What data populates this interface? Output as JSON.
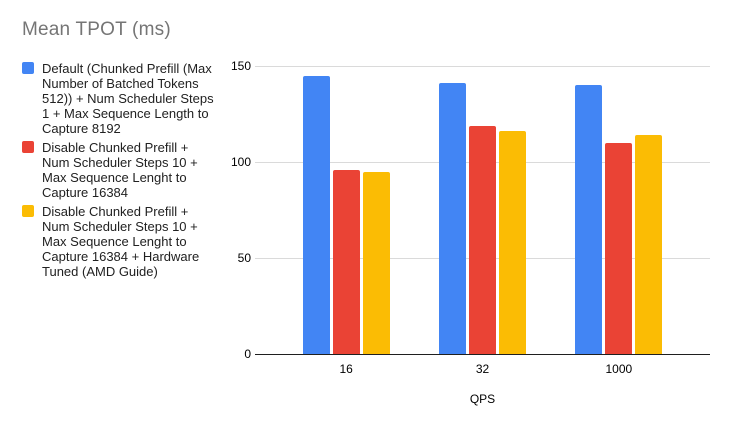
{
  "title": "Mean TPOT (ms)",
  "colors": {
    "series_blue": "#4285F4",
    "series_red": "#EA4335",
    "series_yellow": "#FBBC04",
    "gridline": "#dadada",
    "axis_line": "#1f1f1f",
    "title_text": "#757575",
    "legend_text": "#212121",
    "tick_text": "#000000",
    "background": "#ffffff"
  },
  "legend": {
    "position": "left",
    "items": [
      {
        "label": "Default (Chunked Prefill (Max\nNumber of Batched Tokens\n512)) + Num Scheduler Steps\n1 + Max Sequence Length to\nCapture 8192",
        "color": "#4285F4"
      },
      {
        "label": "Disable Chunked Prefill +\nNum Scheduler Steps 10 +\nMax Sequence Lenght to\nCapture 16384",
        "color": "#EA4335"
      },
      {
        "label": "Disable Chunked Prefill +\nNum Scheduler Steps 10 +\nMax Sequence Lenght to\nCapture 16384 + Hardware\nTuned (AMD Guide)",
        "color": "#FBBC04"
      }
    ]
  },
  "chart_data": {
    "type": "bar",
    "title": "Mean TPOT (ms)",
    "categories": [
      "16",
      "32",
      "1000"
    ],
    "series": [
      {
        "name": "Default (Chunked Prefill (Max Number of Batched Tokens 512)) + Num Scheduler Steps 1 + Max Sequence Length to Capture 8192",
        "color": "#4285F4",
        "values": [
          145,
          141,
          140
        ]
      },
      {
        "name": "Disable Chunked Prefill + Num Scheduler Steps 10 + Max Sequence Lenght to Capture 16384",
        "color": "#EA4335",
        "values": [
          96,
          119,
          110
        ]
      },
      {
        "name": "Disable Chunked Prefill + Num Scheduler Steps 10 + Max Sequence Lenght to Capture 16384 + Hardware Tuned (AMD Guide)",
        "color": "#FBBC04",
        "values": [
          95,
          116,
          114
        ]
      }
    ],
    "xlabel": "QPS",
    "ylabel": "",
    "ylim": [
      0,
      150
    ],
    "yticks": [
      0,
      50,
      100,
      150
    ],
    "grid": true,
    "legend_position": "left"
  }
}
